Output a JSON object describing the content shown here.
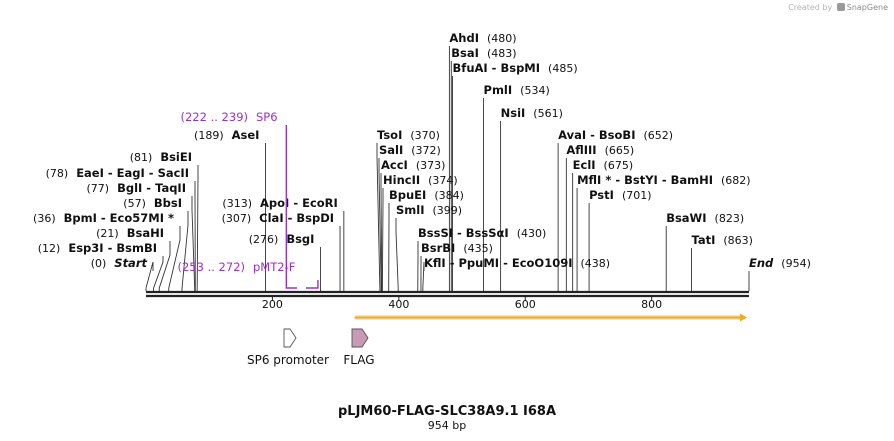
{
  "watermark": {
    "prefix": "Created by",
    "brand": "SnapGene"
  },
  "title": "pLJM60-FLAG-SLC38A9.1 I68A",
  "length_label": "954 bp",
  "sequence_length": 954,
  "ticks": [
    200,
    400,
    600,
    800
  ],
  "site_labels": [
    {
      "text": "AhdI",
      "pos": "(480)",
      "site": 480
    },
    {
      "text": "BsaI",
      "pos": "(483)",
      "site": 483
    },
    {
      "text": "BfuAI  -  BspMI",
      "pos": "(485)",
      "site": 485
    },
    {
      "text": "PmlI",
      "pos": "(534)",
      "site": 534
    },
    {
      "text": "NsiI",
      "pos": "(561)",
      "site": 561
    },
    {
      "text": "AvaI  -  BsoBI",
      "pos": "(652)",
      "site": 652
    },
    {
      "text": "AflIII",
      "pos": "(665)",
      "site": 665
    },
    {
      "text": "EclI",
      "pos": "(675)",
      "site": 675
    },
    {
      "text": "MflI *  -  BstYI  -  BamHI",
      "pos": "(682)",
      "site": 682
    },
    {
      "text": "PstI",
      "pos": "(701)",
      "site": 701
    },
    {
      "text": "BsaWI",
      "pos": "(823)",
      "site": 823
    },
    {
      "text": "TatI",
      "pos": "(863)",
      "site": 863
    },
    {
      "text": "End",
      "pos": "(954)",
      "site": 954,
      "italic": true
    },
    {
      "text": "TsoI",
      "pos": "(370)",
      "site": 370
    },
    {
      "text": "SalI",
      "pos": "(372)",
      "site": 372
    },
    {
      "text": "AccI",
      "pos": "(373)",
      "site": 373
    },
    {
      "text": "HincII",
      "pos": "(374)",
      "site": 374
    },
    {
      "text": "BpuEI",
      "pos": "(384)",
      "site": 384
    },
    {
      "text": "SmlI",
      "pos": "(399)",
      "site": 399
    },
    {
      "text": "BssSI  -  BssSαI",
      "pos": "(430)",
      "site": 430
    },
    {
      "text": "BsrBI",
      "pos": "(435)",
      "site": 435
    },
    {
      "text": "KflI  -  PpuMI  -  EcoO109I",
      "pos": "(438)",
      "site": 438
    },
    {
      "text": "AseI",
      "pos": "(189)",
      "site": 189,
      "left": true
    },
    {
      "text": "BsiEI",
      "pos": "(81)",
      "site": 81,
      "left": true
    },
    {
      "text": "EaeI  -  EagI  -  SacII",
      "pos": "(78)",
      "site": 78,
      "left": true
    },
    {
      "text": "BglI  -  TaqII",
      "pos": "(77)",
      "site": 77,
      "left": true
    },
    {
      "text": "BbsI",
      "pos": "(57)",
      "site": 57,
      "left": true
    },
    {
      "text": "BpmI  -  Eco57MI *",
      "pos": "(36)",
      "site": 36,
      "left": true
    },
    {
      "text": "BsaHI",
      "pos": "(21)",
      "site": 21,
      "left": true
    },
    {
      "text": "Esp3I  -  BsmBI",
      "pos": "(12)",
      "site": 12,
      "left": true
    },
    {
      "text": "Start",
      "pos": "(0)",
      "site": 0,
      "left": true,
      "italic": true
    },
    {
      "text": "ApoI  -  EcoRI",
      "pos": "(313)",
      "site": 313,
      "left": true
    },
    {
      "text": "ClaI  -  BspDI",
      "pos": "(307)",
      "site": 307,
      "left": true
    },
    {
      "text": "BsgI",
      "pos": "(276)",
      "site": 276,
      "left": true
    }
  ],
  "primers": [
    {
      "text": "SP6",
      "pos": "(222 .. 239)",
      "start": 222,
      "end": 239
    },
    {
      "text": "pMT2-F",
      "pos": "(253 .. 272)",
      "start": 253,
      "end": 272
    }
  ],
  "features": [
    {
      "name": "SP6 promoter",
      "start": 222,
      "end": 239,
      "color": "#ffffff",
      "direction": "forward"
    },
    {
      "name": "FLAG",
      "start": 330,
      "end": 354,
      "color": "#c99ab6",
      "direction": "forward"
    }
  ],
  "orf": {
    "start": 330,
    "end": 954,
    "color": "#f2a822",
    "direction": "forward"
  },
  "colors": {
    "primer": "#9b30c8",
    "backbone": "#222222",
    "text": "#111111"
  }
}
